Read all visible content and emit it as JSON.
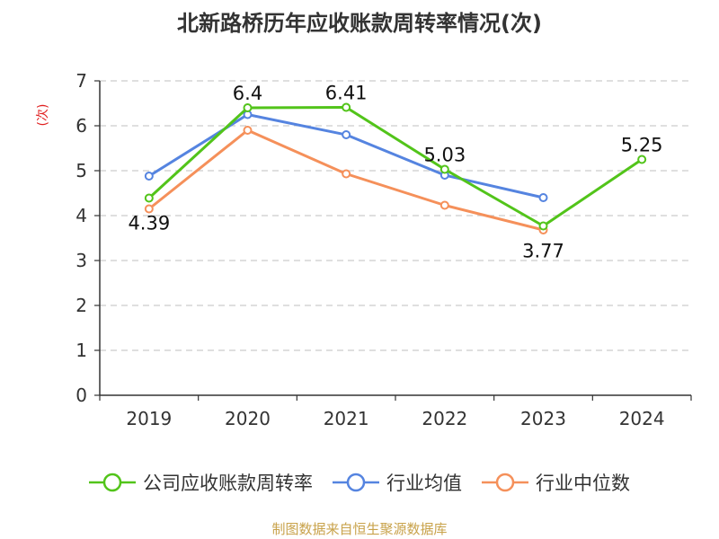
{
  "chart_data": {
    "type": "line",
    "title": "北新路桥历年应收账款周转率情况(次)",
    "ylabel": "(次)",
    "xlabel": "",
    "categories": [
      "2019",
      "2020",
      "2021",
      "2022",
      "2023",
      "2024"
    ],
    "ylim": [
      0,
      7
    ],
    "yticks": [
      0,
      1,
      2,
      3,
      4,
      5,
      6,
      7
    ],
    "grid": true,
    "legend_position": "bottom",
    "series": [
      {
        "name": "公司应收账款周转率",
        "color": "#52c41a",
        "values": [
          4.39,
          6.4,
          6.41,
          5.03,
          3.77,
          5.25
        ],
        "labels": [
          "4.39",
          "6.4",
          "6.41",
          "5.03",
          "3.77",
          "5.25"
        ]
      },
      {
        "name": "行业均值",
        "color": "#5584e0",
        "values": [
          4.88,
          6.25,
          5.8,
          4.9,
          4.4,
          null
        ]
      },
      {
        "name": "行业中位数",
        "color": "#f5905a",
        "values": [
          4.15,
          5.9,
          4.93,
          4.23,
          3.68,
          null
        ]
      }
    ],
    "source": "制图数据来自恒生聚源数据库"
  }
}
